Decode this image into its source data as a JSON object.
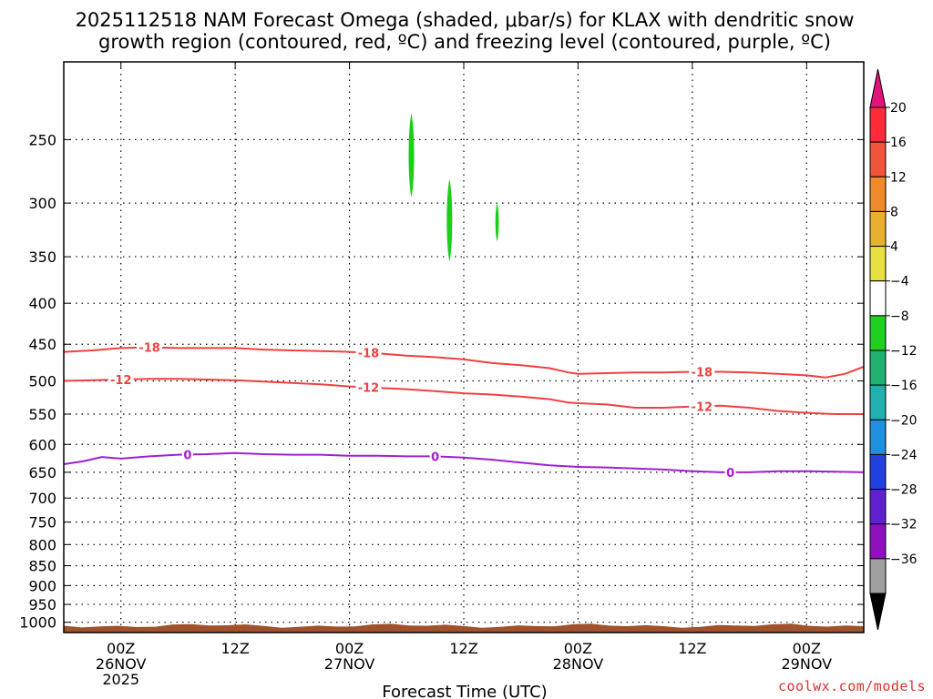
{
  "title": {
    "line1": "2025112518 NAM Forecast Omega (shaded, μbar/s) for KLAX with dendritic snow",
    "line2": "growth region (contoured, red, ºC) and freezing level (contoured, purple, ºC)"
  },
  "x_axis_title": "Forecast Time (UTC)",
  "credit": "coolwx.com/models",
  "chart_data": {
    "type": "line",
    "title": "2025112518 NAM Forecast Omega (shaded, μbar/s) for KLAX with dendritic snow growth region (contoured, red, ºC) and freezing level (contoured, purple, ºC)",
    "xlabel": "Forecast Time (UTC)",
    "ylabel": "",
    "x_unit": "hours since 2025-11-25 18Z",
    "xlim": [
      0,
      84
    ],
    "y_scale": "log-pressure (hPa), inverted",
    "ylim": [
      1030,
      200
    ],
    "grid": true,
    "x_ticks": [
      {
        "x": 6,
        "labels": [
          "00Z",
          "26NOV",
          "2025"
        ]
      },
      {
        "x": 18,
        "labels": [
          "12Z"
        ]
      },
      {
        "x": 30,
        "labels": [
          "00Z",
          "27NOV"
        ]
      },
      {
        "x": 42,
        "labels": [
          "12Z"
        ]
      },
      {
        "x": 54,
        "labels": [
          "00Z",
          "28NOV"
        ]
      },
      {
        "x": 66,
        "labels": [
          "12Z"
        ]
      },
      {
        "x": 78,
        "labels": [
          "00Z",
          "29NOV"
        ]
      }
    ],
    "y_ticks": [
      250,
      300,
      350,
      400,
      450,
      500,
      550,
      600,
      650,
      700,
      750,
      800,
      850,
      900,
      950,
      1000
    ],
    "series": [
      {
        "label": "-18",
        "color": "#f04040",
        "x": [
          0,
          3,
          6,
          9,
          12,
          15,
          18,
          21,
          24,
          27,
          30,
          33,
          36,
          39,
          42,
          45,
          48,
          51,
          53,
          54,
          57,
          60,
          63,
          66,
          69,
          72,
          75,
          78,
          80,
          82,
          84
        ],
        "y": [
          460,
          458,
          455,
          454,
          455,
          455,
          455,
          457,
          458,
          459,
          460,
          462,
          465,
          467,
          470,
          475,
          478,
          482,
          488,
          490,
          489,
          488,
          488,
          487,
          487,
          488,
          490,
          492,
          495,
          490,
          480
        ],
        "label_x": [
          9,
          32,
          67
        ]
      },
      {
        "label": "-12",
        "color": "#f04040",
        "x": [
          0,
          3,
          6,
          9,
          12,
          15,
          18,
          21,
          24,
          27,
          30,
          33,
          36,
          39,
          42,
          45,
          48,
          51,
          53,
          54,
          57,
          60,
          63,
          66,
          69,
          72,
          75,
          78,
          81,
          84
        ],
        "y": [
          500,
          499,
          498,
          497,
          497,
          498,
          499,
          501,
          503,
          505,
          508,
          510,
          512,
          515,
          518,
          520,
          523,
          527,
          532,
          533,
          535,
          540,
          540,
          538,
          537,
          540,
          545,
          548,
          550,
          550
        ],
        "label_x": [
          6,
          32,
          67
        ]
      },
      {
        "label": "0",
        "color": "#a020d0",
        "x": [
          0,
          2,
          4,
          6,
          9,
          12,
          15,
          18,
          21,
          24,
          27,
          30,
          33,
          36,
          39,
          42,
          45,
          48,
          51,
          54,
          57,
          60,
          63,
          66,
          69,
          72,
          75,
          78,
          81,
          84
        ],
        "y": [
          635,
          630,
          622,
          625,
          621,
          618,
          617,
          615,
          617,
          618,
          618,
          620,
          620,
          621,
          621,
          623,
          627,
          632,
          637,
          640,
          641,
          643,
          645,
          648,
          650,
          650,
          648,
          648,
          649,
          650
        ],
        "label_x": [
          13,
          39,
          70
        ]
      }
    ],
    "shaded_cells": [
      {
        "x": 36.5,
        "p_top": 232,
        "p_bottom": 295,
        "omega": -6
      },
      {
        "x": 40.5,
        "p_top": 280,
        "p_bottom": 355,
        "omega": -6
      },
      {
        "x": 45.5,
        "p_top": 300,
        "p_bottom": 335,
        "omega": -6
      }
    ],
    "colorbar": {
      "unit": "μbar/s",
      "ticks": [
        20,
        16,
        12,
        8,
        4,
        -4,
        -8,
        -12,
        -16,
        -20,
        -24,
        -28,
        -32,
        -36
      ],
      "tick_labels": [
        "20",
        "16",
        "12",
        "8",
        "4",
        "−4",
        "−8",
        "−12",
        "−16",
        "−20",
        "−24",
        "−28",
        "−32",
        "−36"
      ],
      "colors": [
        "#ff2a3a",
        "#f0543a",
        "#f08a2a",
        "#e8b030",
        "#e8e040",
        "#ffffff",
        "#20d020",
        "#20b070",
        "#20b0b0",
        "#2090e0",
        "#2040e0",
        "#6020d0",
        "#9010c0",
        "#a0a0a0"
      ],
      "top_extension_color": "#e0147a",
      "bottom_extension_color": "#000000"
    },
    "ground_color": "#a0522d"
  }
}
